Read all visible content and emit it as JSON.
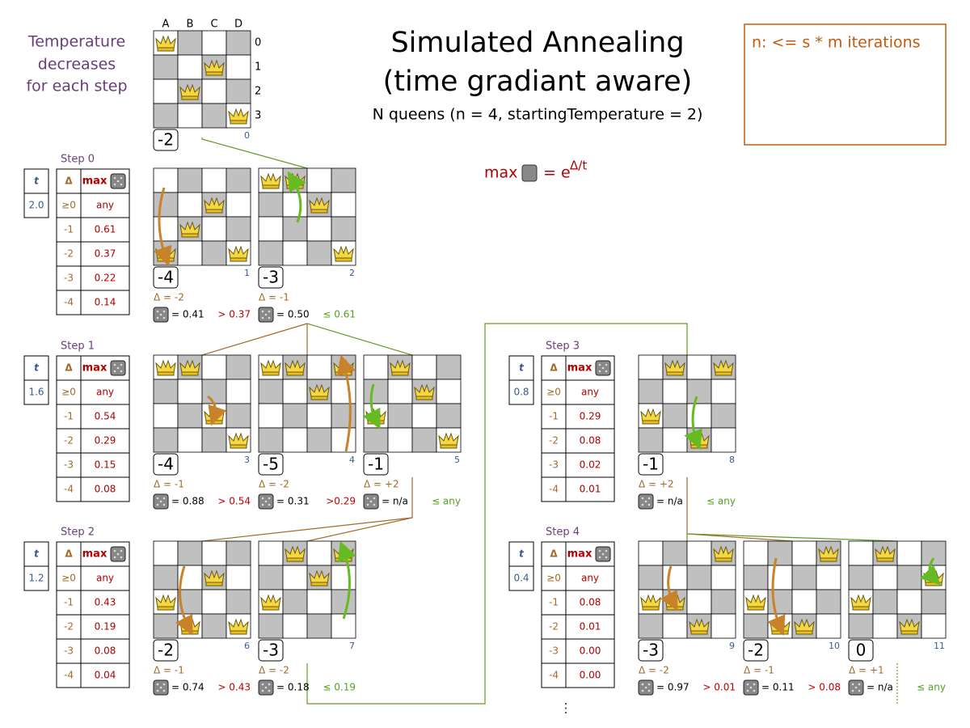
{
  "title": "Simulated Annealing",
  "title_line2": "(time gradiant aware)",
  "subtitle": "N queens (n = 4, startingTemperature = 2)",
  "side_note": [
    "Temperature",
    "decreases",
    "for each step"
  ],
  "note_box": "n: <= s * m iterations",
  "formula": {
    "max": "max",
    "eq": "= e",
    "exp": "Δ/t"
  },
  "initial": {
    "columns": [
      "A",
      "B",
      "C",
      "D"
    ],
    "rows": [
      "0",
      "1",
      "2",
      "3"
    ],
    "board": {
      "id": "0",
      "score": "-2",
      "queens": [
        0,
        2,
        1,
        3
      ]
    }
  },
  "steps": [
    {
      "label": "Step 0",
      "t_header": "t",
      "t": "2.0",
      "table_header": [
        "Δ",
        "max"
      ],
      "table": [
        [
          "≥0",
          "any"
        ],
        [
          "-1",
          "0.61"
        ],
        [
          "-2",
          "0.37"
        ],
        [
          "-3",
          "0.22"
        ],
        [
          "-4",
          "0.14"
        ]
      ],
      "boards": [
        {
          "id": "1",
          "score": "-4",
          "queens": [
            3,
            2,
            1,
            3
          ],
          "delta": "Δ = -2",
          "dice": "= 0.41",
          "compare": "> 0.37"
        },
        {
          "id": "2",
          "score": "-3",
          "queens": [
            0,
            0,
            1,
            3
          ],
          "delta": "Δ = -1",
          "dice": "= 0.50",
          "compare": "≤ 0.61"
        }
      ]
    },
    {
      "label": "Step 1",
      "t_header": "t",
      "t": "1.6",
      "table_header": [
        "Δ",
        "max"
      ],
      "table": [
        [
          "≥0",
          "any"
        ],
        [
          "-1",
          "0.54"
        ],
        [
          "-2",
          "0.29"
        ],
        [
          "-3",
          "0.15"
        ],
        [
          "-4",
          "0.08"
        ]
      ],
      "boards": [
        {
          "id": "3",
          "score": "-4",
          "queens": [
            0,
            0,
            2,
            3
          ],
          "delta": "Δ = -1",
          "dice": "= 0.88",
          "compare": "> 0.54"
        },
        {
          "id": "4",
          "score": "-5",
          "queens": [
            0,
            0,
            1,
            0
          ],
          "delta": "Δ = -2",
          "dice": "= 0.31",
          "compare": ">0.29"
        },
        {
          "id": "5",
          "score": "-1",
          "queens": [
            2,
            0,
            1,
            3
          ],
          "delta": "Δ = +2",
          "dice": "= n/a",
          "compare": "≤ any"
        }
      ]
    },
    {
      "label": "Step 2",
      "t_header": "t",
      "t": "1.2",
      "table_header": [
        "Δ",
        "max"
      ],
      "table": [
        [
          "≥0",
          "any"
        ],
        [
          "-1",
          "0.43"
        ],
        [
          "-2",
          "0.19"
        ],
        [
          "-3",
          "0.08"
        ],
        [
          "-4",
          "0.04"
        ]
      ],
      "boards": [
        {
          "id": "6",
          "score": "-2",
          "queens": [
            2,
            3,
            1,
            3
          ],
          "delta": "Δ = -1",
          "dice": "= 0.74",
          "compare": "> 0.43"
        },
        {
          "id": "7",
          "score": "-3",
          "queens": [
            2,
            0,
            1,
            0
          ],
          "delta": "Δ = -2",
          "dice": "= 0.18",
          "compare": "≤ 0.19"
        }
      ]
    },
    {
      "label": "Step 3",
      "t_header": "t",
      "t": "0.8",
      "table_header": [
        "Δ",
        "max"
      ],
      "table": [
        [
          "≥0",
          "any"
        ],
        [
          "-1",
          "0.29"
        ],
        [
          "-2",
          "0.08"
        ],
        [
          "-3",
          "0.02"
        ],
        [
          "-4",
          "0.01"
        ]
      ],
      "boards": [
        {
          "id": "8",
          "score": "-1",
          "queens": [
            2,
            0,
            3,
            0
          ],
          "delta": "Δ = +2",
          "dice": "= n/a",
          "compare": "≤ any"
        }
      ]
    },
    {
      "label": "Step 4",
      "t_header": "t",
      "t": "0.4",
      "table_header": [
        "Δ",
        "max"
      ],
      "table": [
        [
          "≥0",
          "any"
        ],
        [
          "-1",
          "0.08"
        ],
        [
          "-2",
          "0.01"
        ],
        [
          "-3",
          "0.00"
        ],
        [
          "-4",
          "0.00"
        ]
      ],
      "boards": [
        {
          "id": "9",
          "score": "-3",
          "queens": [
            2,
            2,
            3,
            0
          ],
          "delta": "Δ = -2",
          "dice": "= 0.97",
          "compare": "> 0.01"
        },
        {
          "id": "10",
          "score": "-2",
          "queens": [
            2,
            3,
            3,
            0
          ],
          "delta": "Δ = -1",
          "dice": "= 0.11",
          "compare": "> 0.08"
        },
        {
          "id": "11",
          "score": "0",
          "queens": [
            2,
            0,
            3,
            1
          ],
          "delta": "Δ = +1",
          "dice": "= n/a",
          "compare": "≤ any"
        }
      ]
    }
  ],
  "ellipsis": "⋮"
}
